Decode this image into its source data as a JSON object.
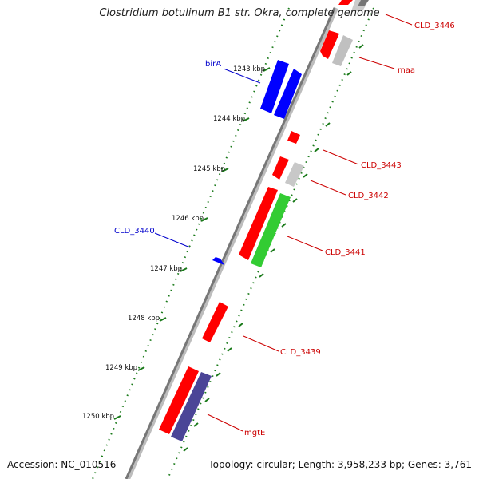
{
  "title": "Clostridium botulinum B1 str. Okra, complete genome",
  "accession": "Accession: NC_010516",
  "topology": "Topology: circular; Length: 3,958,233 bp; Genes: 3,761",
  "colors": {
    "forward_gene": "#ff0000",
    "reverse_gene": "#0000ff",
    "rna_gene": "#bbbbbb",
    "green_gene": "#33cc33",
    "purple_gene": "#4b4597",
    "forward_label": "#cc0000",
    "reverse_label": "#0000cc",
    "backbone": "#777777",
    "tick": "#1a7a1a"
  },
  "ticks": [
    "1243 kbp",
    "1244 kbp",
    "1245 kbp",
    "1246 kbp",
    "1247 kbp",
    "1248 kbp",
    "1249 kbp",
    "1250 kbp"
  ],
  "gene_labels": {
    "cld3446": "CLD_3446",
    "maa": "maa",
    "birA": "birA",
    "cld3443": "CLD_3443",
    "cld3442": "CLD_3442",
    "cld3440": "CLD_3440",
    "cld3441": "CLD_3441",
    "cld3439": "CLD_3439",
    "mgtE": "mgtE"
  }
}
